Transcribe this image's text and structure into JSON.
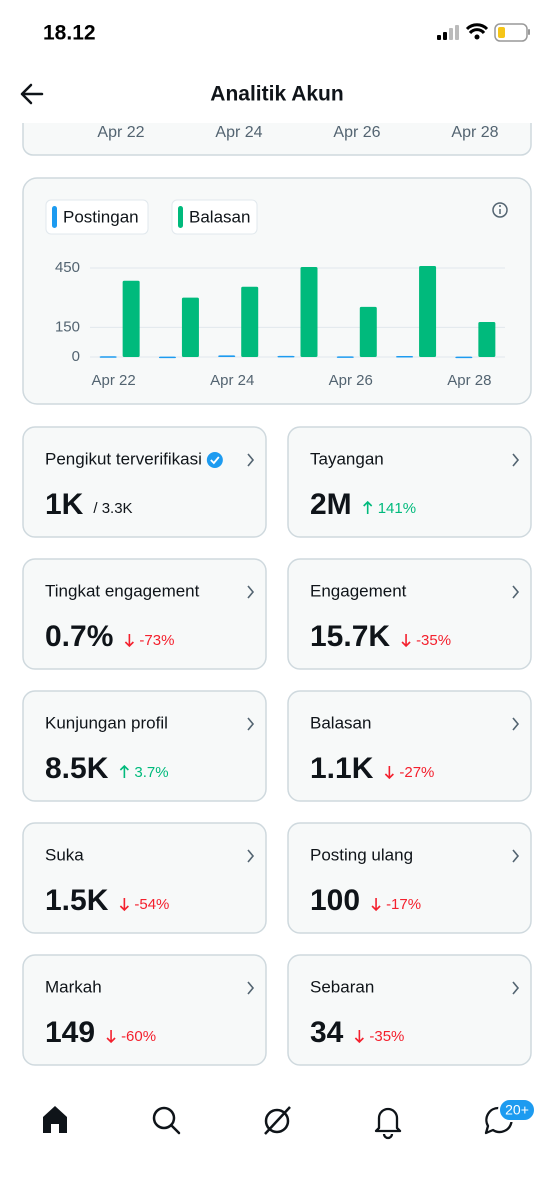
{
  "status_bar": {
    "time": "18.12"
  },
  "header": {
    "title": "Analitik Akun"
  },
  "top_card": {
    "x_labels": [
      "Apr 22",
      "Apr 24",
      "Apr 26",
      "Apr 28"
    ]
  },
  "chart_data": {
    "type": "bar",
    "categories": [
      "Apr 22",
      null,
      "Apr 24",
      null,
      "Apr 26",
      null,
      "Apr 28"
    ],
    "series": [
      {
        "name": "Postingan",
        "color": "#1d9bf0",
        "values": [
          4,
          2,
          8,
          6,
          3,
          5,
          2
        ]
      },
      {
        "name": "Balasan",
        "color": "#00ba7c",
        "values": [
          385,
          300,
          355,
          455,
          253,
          460,
          177
        ]
      }
    ],
    "ylim": [
      0,
      480
    ],
    "yticks": [
      0,
      150,
      450
    ],
    "grid": true
  },
  "metrics": [
    {
      "label": "Pengikut terverifikasi",
      "value": "1K",
      "total": "/ 3.3K",
      "verified": true
    },
    {
      "label": "Tayangan",
      "value": "2M",
      "change": "141%",
      "direction": "up"
    },
    {
      "label": "Tingkat engagement",
      "value": "0.7%",
      "change": "-73%",
      "direction": "down"
    },
    {
      "label": "Engagement",
      "value": "15.7K",
      "change": "-35%",
      "direction": "down"
    },
    {
      "label": "Kunjungan profil",
      "value": "8.5K",
      "change": "3.7%",
      "direction": "up"
    },
    {
      "label": "Balasan",
      "value": "1.1K",
      "change": "-27%",
      "direction": "down"
    },
    {
      "label": "Suka",
      "value": "1.5K",
      "change": "-54%",
      "direction": "down"
    },
    {
      "label": "Posting ulang",
      "value": "100",
      "change": "-17%",
      "direction": "down"
    },
    {
      "label": "Markah",
      "value": "149",
      "change": "-60%",
      "direction": "down"
    },
    {
      "label": "Sebaran",
      "value": "34",
      "change": "-35%",
      "direction": "down"
    }
  ],
  "nav": {
    "badge": "20+"
  }
}
